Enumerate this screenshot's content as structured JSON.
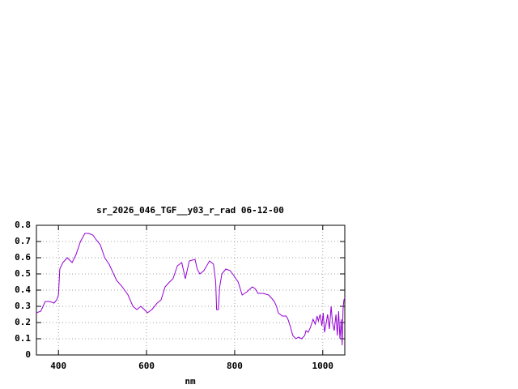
{
  "chart_data": {
    "type": "line",
    "title": "sr_2026_046_TGF__y03_r_rad 06-12-00",
    "xlabel": "nm",
    "x": [
      350,
      360,
      370,
      380,
      390,
      396,
      400,
      403,
      410,
      420,
      431,
      440,
      450,
      460,
      468,
      478,
      486,
      495,
      505,
      515,
      532,
      545,
      558,
      569,
      578,
      587,
      595,
      602,
      612,
      624,
      633,
      642,
      652,
      660,
      670,
      680,
      688,
      697,
      710,
      715,
      721,
      730,
      743,
      752,
      757,
      759,
      763,
      766,
      771,
      780,
      790,
      798,
      808,
      817,
      828,
      840,
      846,
      853,
      865,
      877,
      884,
      890,
      895,
      899,
      908,
      917,
      921,
      927,
      932,
      939,
      945,
      952,
      959,
      962,
      967,
      972,
      978,
      983,
      987,
      990,
      994,
      998,
      1001,
      1004,
      1008,
      1011,
      1015,
      1019,
      1022,
      1026,
      1030,
      1033,
      1036,
      1039,
      1042,
      1044,
      1046,
      1048,
      1050
    ],
    "series": [
      {
        "name": "sr_2026_046_TGF__y03_r_rad 06-12-00",
        "color": "#9400d3",
        "values": [
          0.26,
          0.27,
          0.33,
          0.33,
          0.32,
          0.34,
          0.37,
          0.53,
          0.57,
          0.6,
          0.57,
          0.62,
          0.7,
          0.75,
          0.75,
          0.74,
          0.71,
          0.68,
          0.6,
          0.56,
          0.46,
          0.42,
          0.37,
          0.3,
          0.28,
          0.3,
          0.28,
          0.26,
          0.28,
          0.32,
          0.34,
          0.42,
          0.45,
          0.47,
          0.55,
          0.57,
          0.47,
          0.58,
          0.59,
          0.53,
          0.5,
          0.52,
          0.58,
          0.56,
          0.45,
          0.28,
          0.28,
          0.42,
          0.5,
          0.53,
          0.52,
          0.49,
          0.45,
          0.37,
          0.39,
          0.42,
          0.41,
          0.38,
          0.38,
          0.37,
          0.35,
          0.33,
          0.3,
          0.26,
          0.24,
          0.24,
          0.22,
          0.17,
          0.12,
          0.1,
          0.11,
          0.1,
          0.12,
          0.15,
          0.14,
          0.17,
          0.22,
          0.19,
          0.24,
          0.21,
          0.25,
          0.18,
          0.26,
          0.14,
          0.2,
          0.25,
          0.16,
          0.3,
          0.2,
          0.15,
          0.25,
          0.12,
          0.27,
          0.1,
          0.22,
          0.06,
          0.28,
          0.34,
          0.35
        ]
      }
    ],
    "xlim": [
      350,
      1050
    ],
    "xticks": [
      400,
      600,
      800,
      1000
    ],
    "ylim": [
      0,
      0.8
    ],
    "yticks": [
      0,
      0.1,
      0.2,
      0.3,
      0.4,
      0.5,
      0.6,
      0.7,
      0.8
    ],
    "grid": true
  }
}
